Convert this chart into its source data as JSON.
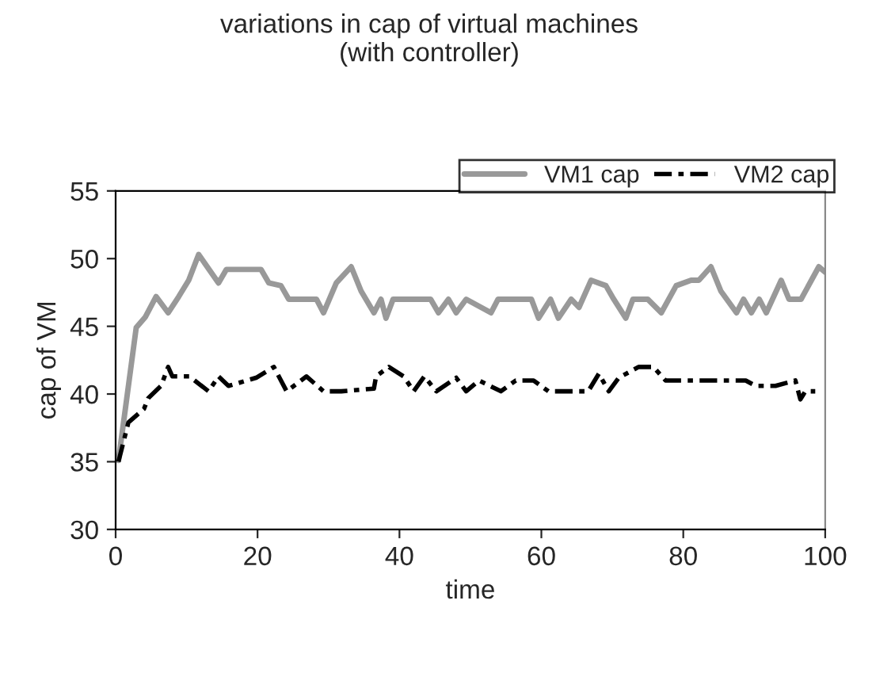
{
  "chart_data": {
    "type": "line",
    "title": "variations in cap of virtual machines\n(with controller)",
    "xlabel": "time",
    "ylabel": "cap of VM",
    "xlim": [
      0,
      100
    ],
    "xticks": [
      0,
      20,
      40,
      60,
      80,
      100
    ],
    "ylim": [
      30,
      55
    ],
    "yticks": [
      30,
      35,
      40,
      45,
      50,
      55
    ],
    "grid": false,
    "legend": "top right",
    "marker": "none",
    "series": [
      {
        "name": "VM1 cap",
        "color": "#999999",
        "line_style": "solid",
        "x": [
          0.4,
          2.9,
          4.2,
          5.7,
          7.4,
          8.9,
          10.3,
          11.7,
          14.5,
          15.6,
          20.5,
          21.6,
          23.3,
          24.4,
          28.3,
          29.3,
          31.1,
          33.2,
          34.6,
          36.4,
          37.4,
          38.1,
          39.1,
          44.4,
          45.5,
          46.9,
          48,
          49.4,
          52.9,
          53.9,
          58.6,
          59.6,
          61.3,
          62.4,
          64.2,
          65.3,
          67,
          69.1,
          70.2,
          71.9,
          72.9,
          75,
          76.9,
          79,
          81.1,
          82.2,
          83.9,
          85.3,
          87.5,
          88.5,
          89.6,
          90.7,
          91.7,
          93.8,
          94.9,
          96.6,
          99.1,
          100
        ],
        "values": [
          35.1,
          44.9,
          45.7,
          47.2,
          46,
          47.2,
          48.4,
          50.3,
          48.2,
          49.2,
          49.2,
          48.2,
          48,
          47,
          47,
          46,
          48.2,
          49.4,
          47.6,
          46,
          47,
          45.6,
          47,
          47,
          46,
          47,
          46,
          47,
          46,
          47,
          47,
          45.6,
          47,
          45.6,
          47,
          46.4,
          48.4,
          48,
          47,
          45.6,
          47,
          47,
          46,
          48,
          48.4,
          48.4,
          49.4,
          47.6,
          46,
          47,
          46,
          47,
          46,
          48.4,
          47,
          47,
          49.4,
          49
        ]
      },
      {
        "name": "VM2 cap",
        "color": "#000000",
        "line_style": "dashed",
        "x": [
          0.4,
          1.8,
          4,
          4.6,
          6.4,
          7.4,
          8,
          10.4,
          13.1,
          14.5,
          15.9,
          19.8,
          22.3,
          24.1,
          26.9,
          29.3,
          31.8,
          36.4,
          36.7,
          38.5,
          40.6,
          42,
          43.5,
          45.2,
          48,
          49.4,
          51.2,
          54.3,
          56.4,
          58.9,
          61,
          64.2,
          66.6,
          68.1,
          69.5,
          70.9,
          73.7,
          75.8,
          77.5,
          79,
          81.8,
          86.4,
          88.8,
          90.2,
          93,
          95.8,
          96.5,
          97.2,
          98.6
        ],
        "values": [
          35,
          37.9,
          38.9,
          39.7,
          40.6,
          42,
          41.3,
          41.3,
          40.2,
          41.3,
          40.6,
          41.2,
          42,
          40.2,
          41.3,
          40.2,
          40.2,
          40.4,
          41.3,
          42,
          41.3,
          40.2,
          41.3,
          40.2,
          41.2,
          40.2,
          41,
          40.2,
          41,
          41,
          40.2,
          40.2,
          40.2,
          41.5,
          40.2,
          41.2,
          42,
          42,
          41,
          41,
          41,
          41,
          41,
          40.6,
          40.6,
          41,
          39.6,
          40.2,
          40.2
        ]
      }
    ]
  }
}
